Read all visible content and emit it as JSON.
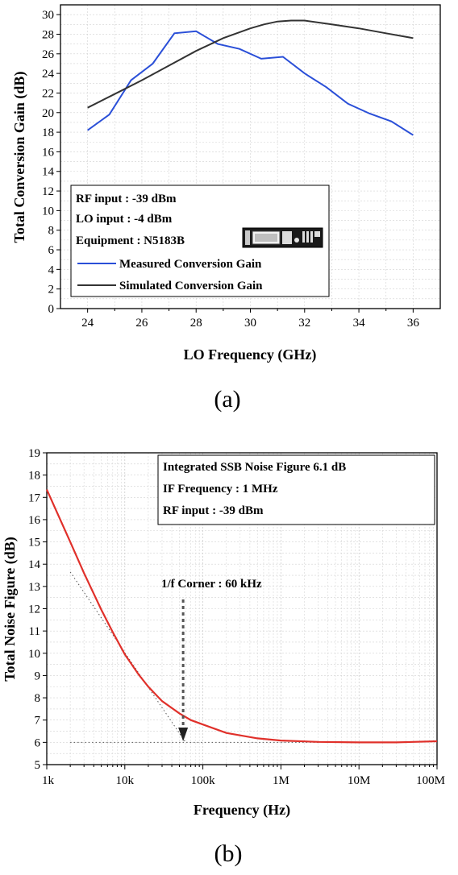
{
  "chart_data": [
    {
      "type": "line",
      "panel_label": "(a)",
      "title": "",
      "xlabel": "LO Frequency (GHz)",
      "ylabel": "Total Conversion Gain (dB)",
      "xlim": [
        23,
        37
      ],
      "ylim": [
        0,
        31
      ],
      "xticks": [
        24,
        26,
        28,
        30,
        32,
        34,
        36
      ],
      "yticks": [
        0,
        2,
        4,
        6,
        8,
        10,
        12,
        14,
        16,
        18,
        20,
        22,
        24,
        26,
        28,
        30
      ],
      "grid": true,
      "legend_position": "lower-left",
      "info_lines": [
        "RF input : -39 dBm",
        "LO input : -4 dBm",
        "Equipment : N5183B"
      ],
      "series": [
        {
          "name": "Measured Conversion Gain",
          "color": "#2a4fd8",
          "x": [
            24,
            24.8,
            25.6,
            26.4,
            27.2,
            28,
            28.8,
            29.6,
            30.4,
            31.2,
            32,
            32.8,
            33.6,
            34.4,
            35.2,
            36
          ],
          "y": [
            18.2,
            19.8,
            23.3,
            25.0,
            28.1,
            28.3,
            27.0,
            26.5,
            25.5,
            25.7,
            24.0,
            22.6,
            20.9,
            19.9,
            19.1,
            17.7
          ]
        },
        {
          "name": "Simulated Conversion Gain",
          "color": "#333333",
          "x": [
            24,
            25,
            26,
            27,
            28,
            29,
            30,
            30.5,
            31,
            31.5,
            32,
            33,
            34,
            35,
            36
          ],
          "y": [
            20.5,
            21.9,
            23.3,
            24.8,
            26.3,
            27.6,
            28.6,
            29.0,
            29.3,
            29.4,
            29.4,
            29.0,
            28.6,
            28.1,
            27.6
          ]
        }
      ]
    },
    {
      "type": "line",
      "panel_label": "(b)",
      "title": "",
      "xlabel": "Frequency (Hz)",
      "ylabel": "Total Noise Figure (dB)",
      "xscale": "log",
      "xlim": [
        1000,
        100000000
      ],
      "ylim": [
        5,
        19
      ],
      "xticks": [
        1000,
        10000,
        100000,
        1000000,
        10000000,
        100000000
      ],
      "xtick_labels": [
        "1k",
        "10k",
        "100k",
        "1M",
        "10M",
        "100M"
      ],
      "yticks": [
        5,
        6,
        7,
        8,
        9,
        10,
        11,
        12,
        13,
        14,
        15,
        16,
        17,
        18,
        19
      ],
      "grid": true,
      "info_lines": [
        "Integrated SSB Noise Figure 6.1 dB",
        "IF Frequency : 1 MHz",
        "RF input : -39 dBm"
      ],
      "annotation": "1/f Corner : 60 kHz",
      "corner_frequency": 60000,
      "asymptote_level": 6.0,
      "series": [
        {
          "name": "",
          "color": "#e0302a",
          "x": [
            1000,
            2000,
            3000,
            5000,
            7000,
            10000,
            15000,
            20000,
            30000,
            50000,
            70000,
            100000,
            200000,
            500000,
            1000000,
            3000000,
            10000000,
            30000000,
            100000000
          ],
          "y": [
            17.35,
            15.0,
            13.6,
            11.95,
            10.95,
            9.95,
            9.05,
            8.5,
            7.85,
            7.3,
            7.0,
            6.8,
            6.42,
            6.18,
            6.08,
            6.02,
            6.0,
            6.0,
            6.05
          ]
        }
      ]
    }
  ]
}
